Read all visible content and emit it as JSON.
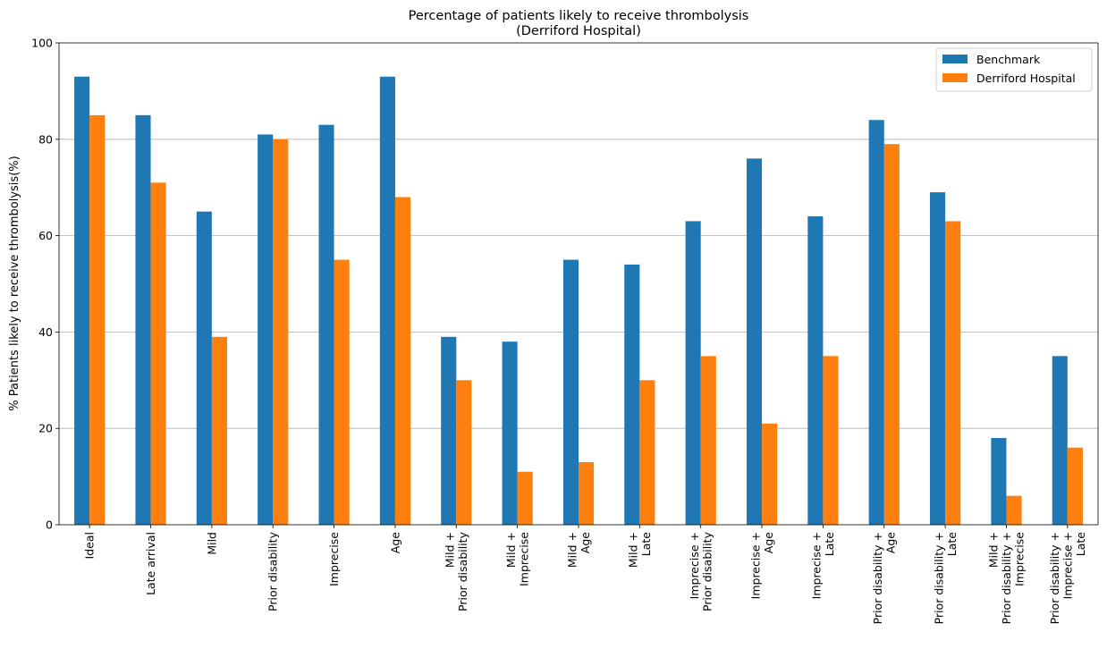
{
  "chart_data": {
    "type": "bar",
    "title": [
      "Percentage of patients likely to receive thrombolysis",
      "(Derriford Hospital)"
    ],
    "ylabel": "% Patients likely to receive thrombolysis(%)",
    "xlabel": "",
    "ylim": [
      0,
      100
    ],
    "yticks": [
      0,
      20,
      40,
      60,
      80,
      100
    ],
    "grid": "horizontal",
    "legend_position": "top-right",
    "categories": [
      [
        "Ideal"
      ],
      [
        "Late arrival"
      ],
      [
        "Mild"
      ],
      [
        "Prior disability"
      ],
      [
        "Imprecise"
      ],
      [
        "Age"
      ],
      [
        "Mild +",
        "Prior disability"
      ],
      [
        "Mild +",
        "Imprecise"
      ],
      [
        "Mild +",
        "Age"
      ],
      [
        "Mild +",
        "Late"
      ],
      [
        "Imprecise +",
        "Prior disability"
      ],
      [
        "Imprecise +",
        "Age"
      ],
      [
        "Imprecise +",
        "Late"
      ],
      [
        "Prior disability +",
        "Age"
      ],
      [
        "Prior disability +",
        "Late"
      ],
      [
        "Mild +",
        "Prior disability +",
        "Imprecise"
      ],
      [
        "Prior disability +",
        "Imprecise +",
        "Late"
      ]
    ],
    "series": [
      {
        "name": "Benchmark",
        "color": "#1f77b4",
        "values": [
          93,
          85,
          65,
          81,
          83,
          93,
          39,
          38,
          55,
          54,
          63,
          76,
          64,
          84,
          69,
          18,
          35
        ]
      },
      {
        "name": "Derriford Hospital",
        "color": "#ff7f0e",
        "values": [
          85,
          71,
          39,
          80,
          55,
          68,
          30,
          11,
          13,
          30,
          35,
          21,
          35,
          79,
          63,
          6,
          16
        ]
      }
    ]
  }
}
